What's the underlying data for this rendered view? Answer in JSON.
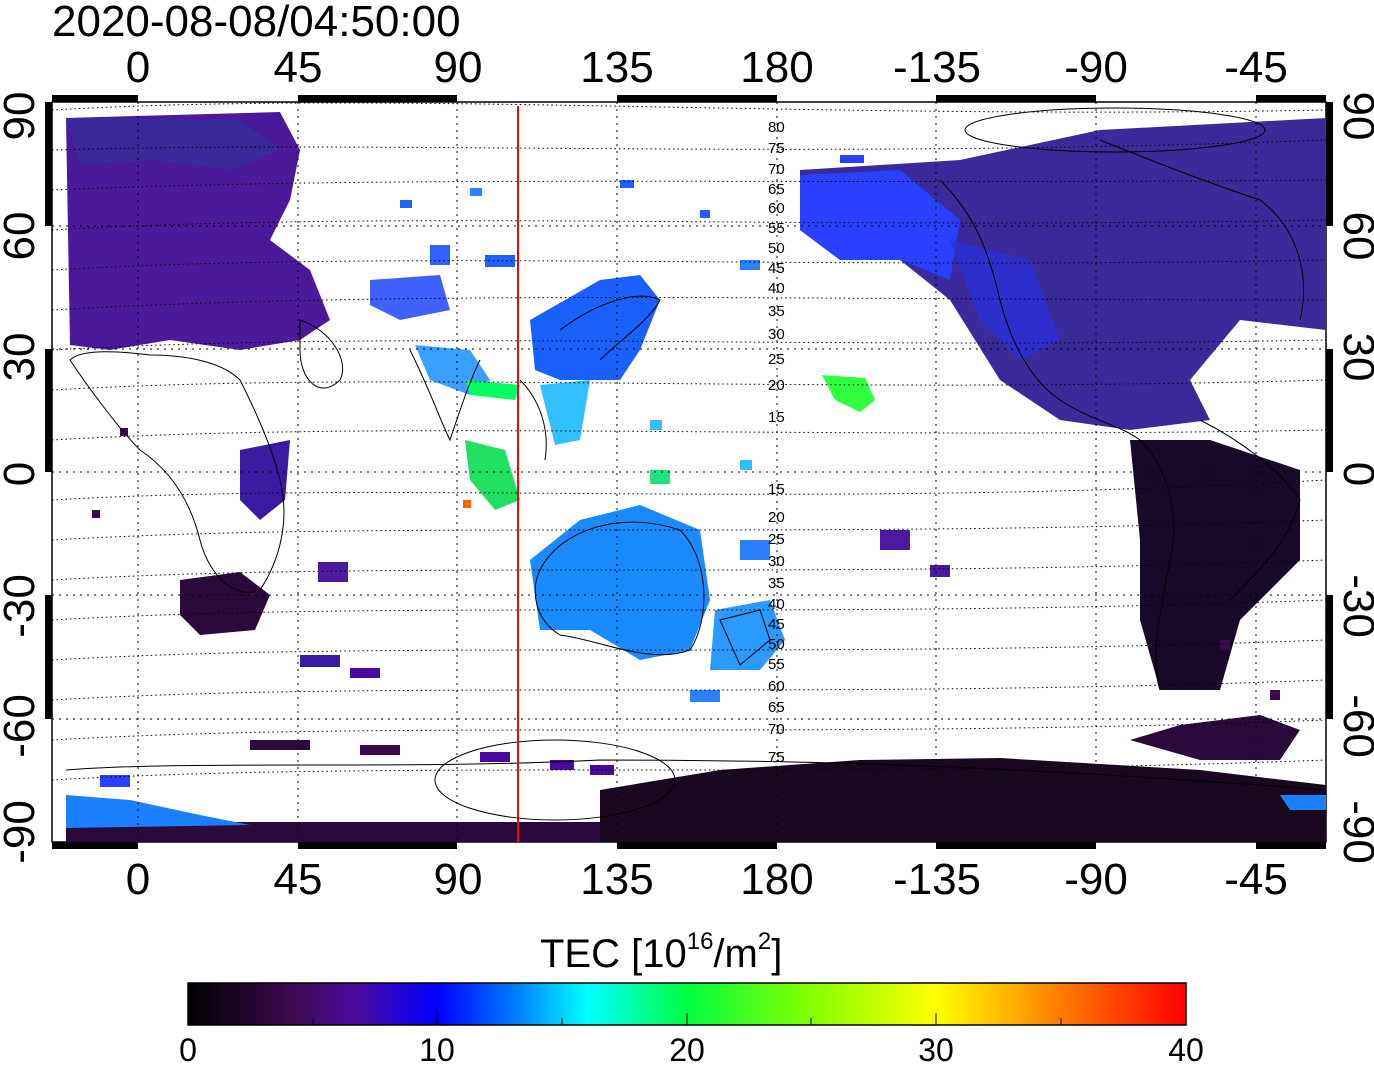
{
  "title": "2020-08-08/04:50:00",
  "top_axis_ticks": [
    "0",
    "45",
    "90",
    "135",
    "180",
    "-135",
    "-90",
    "-45"
  ],
  "bottom_axis_ticks": [
    "0",
    "45",
    "90",
    "135",
    "180",
    "-135",
    "-90",
    "-45"
  ],
  "left_axis_ticks": [
    "90",
    "60",
    "30",
    "0",
    "-30",
    "-60",
    "-90"
  ],
  "right_axis_ticks": [
    "90",
    "60",
    "30",
    "0",
    "-30",
    "-60",
    "-90"
  ],
  "contour_labels_north": [
    "80",
    "75",
    "70",
    "65",
    "60",
    "55",
    "50",
    "45",
    "40",
    "35",
    "30",
    "25",
    "20",
    "15"
  ],
  "contour_labels_south": [
    "15",
    "20",
    "25",
    "30",
    "35",
    "40",
    "45",
    "50",
    "55",
    "60",
    "65",
    "70",
    "75"
  ],
  "colorbar": {
    "label_main": "TEC  [10",
    "label_exp1": "16",
    "label_mid": "/m",
    "label_exp2": "2",
    "label_end": "]",
    "ticks": [
      "0",
      "10",
      "20",
      "30",
      "40"
    ],
    "range": [
      0,
      40
    ]
  },
  "colors": {
    "background": "#ffffff",
    "meridian_line": "#ff0000",
    "colormap": [
      "#000000",
      "#3a0a4a",
      "#4a0aa0",
      "#0000ff",
      "#0080ff",
      "#00ffff",
      "#00ff40",
      "#80ff00",
      "#ffff00",
      "#ff8000",
      "#ff0000"
    ]
  },
  "map": {
    "lon_range": [
      -25,
      335
    ],
    "lat_range": [
      -90,
      90
    ],
    "meridian_lon": 106
  }
}
